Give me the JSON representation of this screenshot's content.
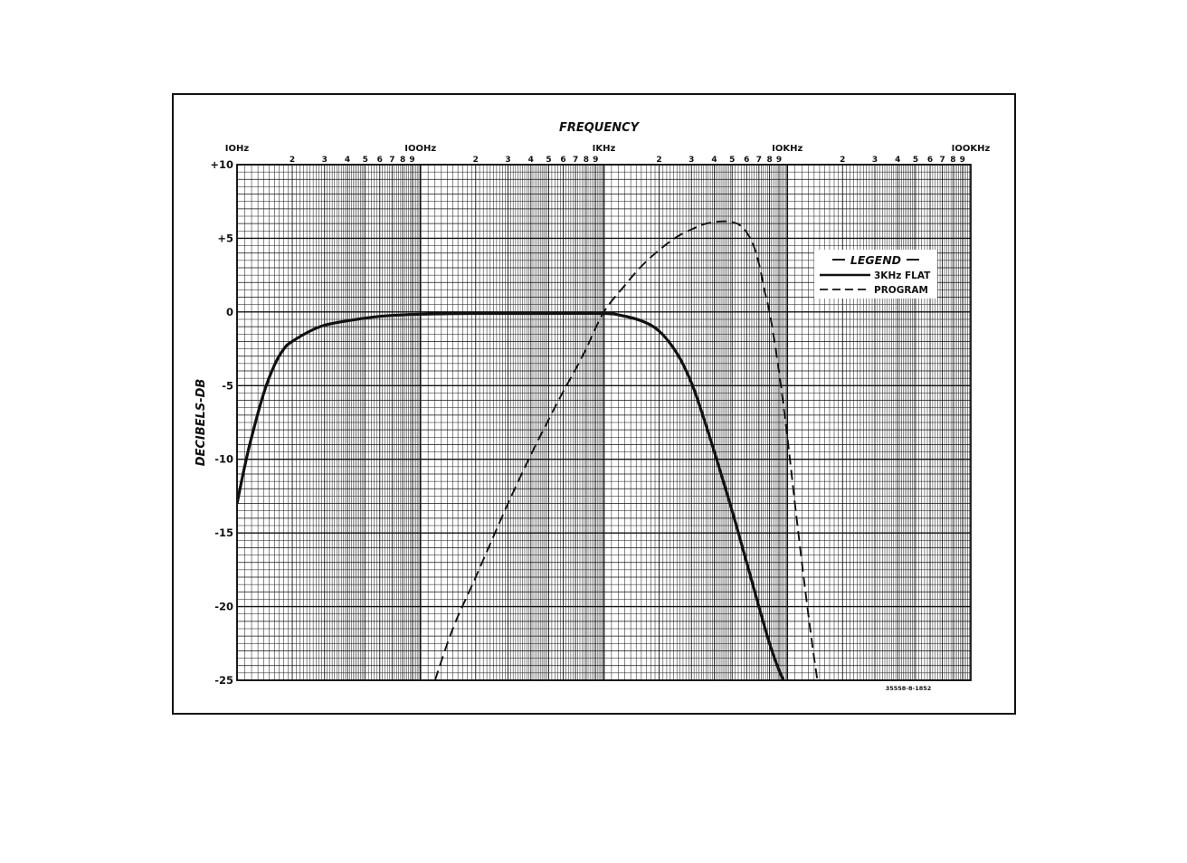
{
  "chart_data": {
    "type": "line",
    "title": "FREQUENCY",
    "xlabel": "FREQUENCY",
    "ylabel": "DECIBELS-DB",
    "x_scale": "log",
    "xlim": [
      10,
      100000
    ],
    "ylim": [
      -25,
      10
    ],
    "grid": true,
    "decade_labels": [
      "IOHz",
      "IOOHz",
      "IKHz",
      "IOKHz",
      "IOOKHz"
    ],
    "minor_tick_labels": [
      "2",
      "3",
      "4",
      "5",
      "6",
      "7",
      "8",
      "9"
    ],
    "y_ticks": [
      {
        "value": 10,
        "label": "+10"
      },
      {
        "value": 5,
        "label": "+5"
      },
      {
        "value": 0,
        "label": "0"
      },
      {
        "value": -5,
        "label": "-5"
      },
      {
        "value": -10,
        "label": "-10"
      },
      {
        "value": -15,
        "label": "-15"
      },
      {
        "value": -20,
        "label": "-20"
      },
      {
        "value": -25,
        "label": "-25"
      }
    ],
    "legend": {
      "title": "LEGEND",
      "placement": "top-right",
      "entries": [
        {
          "label": "3KHz FLAT",
          "style": "solid"
        },
        {
          "label": "PROGRAM",
          "style": "dashed"
        }
      ]
    },
    "series": [
      {
        "name": "3KHz FLAT",
        "style": "solid",
        "x": [
          10,
          11,
          12,
          14,
          16,
          18,
          20,
          25,
          30,
          40,
          60,
          100,
          200,
          500,
          1000,
          1200,
          1600,
          2000,
          2500,
          3000,
          3500,
          4000,
          5000,
          6000,
          7000,
          8000,
          9000,
          10000,
          12000
        ],
        "y": [
          -13,
          -10.5,
          -8.5,
          -5.5,
          -3.6,
          -2.5,
          -2,
          -1.3,
          -0.9,
          -0.6,
          -0.3,
          -0.15,
          -0.1,
          -0.1,
          -0.1,
          -0.2,
          -0.6,
          -1.3,
          -2.8,
          -4.8,
          -7.2,
          -9.5,
          -13.5,
          -17,
          -20,
          -22.5,
          -24.3,
          -25.5,
          -27
        ]
      },
      {
        "name": "PROGRAM",
        "style": "dashed",
        "x": [
          120,
          150,
          200,
          300,
          400,
          500,
          600,
          700,
          800,
          1000,
          1300,
          1600,
          2000,
          2500,
          3000,
          3500,
          4000,
          4500,
          5000,
          5500,
          6000,
          6500,
          7000,
          7500,
          8000,
          8500,
          9000,
          10000,
          11000,
          12000,
          13000,
          14000,
          15000
        ],
        "y": [
          -25,
          -21.5,
          -18,
          -13,
          -9.7,
          -7.3,
          -5.4,
          -3.9,
          -2.5,
          0,
          1.8,
          3.1,
          4.2,
          5.1,
          5.6,
          5.95,
          6.1,
          6.15,
          6.1,
          5.9,
          5.4,
          4.6,
          3.3,
          1.5,
          0,
          -2,
          -4,
          -8.5,
          -13,
          -17,
          -20.5,
          -23.5,
          -26
        ]
      }
    ]
  },
  "figure_id": "35558-8-1852"
}
